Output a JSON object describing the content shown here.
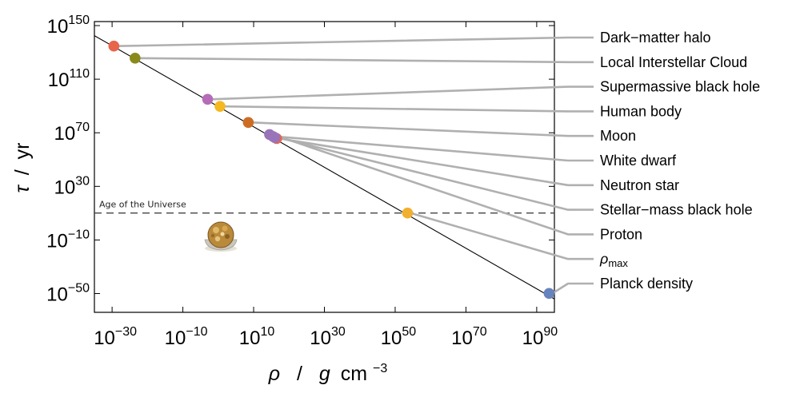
{
  "chart_data": {
    "type": "scatter",
    "x_scale": "log",
    "y_scale": "log",
    "xlim_exp": [
      -35,
      95
    ],
    "ylim_exp": [
      -64,
      153
    ],
    "x_tick_exponents": [
      -30,
      -10,
      10,
      30,
      50,
      70,
      90
    ],
    "y_tick_exponents": [
      150,
      110,
      70,
      30,
      -10,
      -50
    ],
    "x_tick_labels": [
      "10−30",
      "10−10",
      "1010",
      "1030",
      "1050",
      "1070",
      "1090"
    ],
    "y_tick_labels": [
      "10150",
      "10110",
      "1070",
      "1030",
      "10−10",
      "10−50"
    ],
    "xlabel": {
      "symbol": "ρ",
      "sep": "/",
      "unit_symbol": "g",
      "unit_rest": "cm",
      "unit_power": "−3"
    },
    "ylabel": {
      "symbol": "τ",
      "sep": "/",
      "unit": "yr"
    },
    "trend_line": {
      "x_exp": [
        -35,
        95
      ],
      "y_exp": [
        142.5,
        -54
      ]
    },
    "reference_line": {
      "label": "Age of the Universe",
      "y_exp": 10.1,
      "style": "dashed"
    },
    "points": [
      {
        "name": "Dark−matter halo",
        "x_exp": -29.5,
        "y_exp": 134.7,
        "color": "#e8644a"
      },
      {
        "name": "Local Interstellar Cloud",
        "x_exp": -23.5,
        "y_exp": 125.7,
        "color": "#8a8a1c"
      },
      {
        "name": "Supermassive black hole",
        "x_exp": -3,
        "y_exp": 95.0,
        "color": "#b56bb8"
      },
      {
        "name": "Human body",
        "x_exp": 0.5,
        "y_exp": 89.7,
        "color": "#f4b821"
      },
      {
        "name": "Moon",
        "x_exp": 8.5,
        "y_exp": 77.7,
        "color": "#cd6d24"
      },
      {
        "name": "White dwarf",
        "x_exp": 15.5,
        "y_exp": 67.2,
        "color": "#9a74b8"
      },
      {
        "name": "Neutron star",
        "x_exp": 16.5,
        "y_exp": 65.7,
        "color": "#e8644a"
      },
      {
        "name": "Stellar−mass black hole",
        "x_exp": 16.0,
        "y_exp": 66.4,
        "color": "#9a74b8"
      },
      {
        "name": "Proton",
        "x_exp": 14.5,
        "y_exp": 68.7,
        "color": "#9a74b8"
      },
      {
        "name": "ρmax",
        "x_exp": 53.5,
        "y_exp": 10.1,
        "color": "#f0b030"
      },
      {
        "name": "Planck density",
        "x_exp": 93.5,
        "y_exp": -49.9,
        "color": "#6783bd"
      }
    ],
    "legend_labels": [
      {
        "text": "Dark−matter halo",
        "point": 0
      },
      {
        "text": "Local Interstellar Cloud",
        "point": 1
      },
      {
        "text": "Supermassive black hole",
        "point": 2
      },
      {
        "text": "Human body",
        "point": 3
      },
      {
        "text": "Moon",
        "point": 4
      },
      {
        "text": "White dwarf",
        "point": 5
      },
      {
        "text": "Neutron star",
        "point": 6
      },
      {
        "text": "Stellar−mass black hole",
        "point": 7
      },
      {
        "text": "Proton",
        "point": 8
      },
      {
        "text": "ρ",
        "sub": "max",
        "point": 9
      },
      {
        "text": "Planck density",
        "point": 10
      }
    ],
    "annotation_icon": "chocolate-praline-image"
  }
}
